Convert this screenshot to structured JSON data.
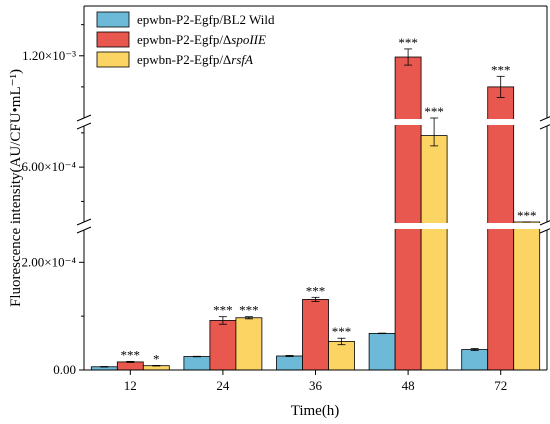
{
  "chart_data": {
    "type": "bar",
    "xlabel": "Time(h)",
    "ylabel": "Fluorescence intensity(AU/CFU•mL⁻¹)",
    "categories": [
      "12",
      "24",
      "36",
      "48",
      "72"
    ],
    "y_axis_breaks": [
      [
        0.00026,
        0.00052
      ],
      [
        0.00066,
        0.0011
      ]
    ],
    "yticks": [
      {
        "value": 0,
        "label": "0.00"
      },
      {
        "value": 0.0002,
        "label": "2.00×10⁻⁴"
      },
      {
        "value": 0.0006,
        "label": "6.00×10⁻⁴"
      },
      {
        "value": 0.0012,
        "label": "1.20×10⁻³"
      }
    ],
    "ylim": [
      0,
      0.00128
    ],
    "grid": false,
    "legend_position": "top-left",
    "series": [
      {
        "name": "epwbn-P2-Egfp/BL2 Wild",
        "color": "#6cbad8",
        "values": [
          6e-06,
          2.5e-05,
          2.6e-05,
          6.8e-05,
          3.8e-05
        ],
        "errors": [
          5e-07,
          5e-07,
          1e-06,
          5e-07,
          2e-06
        ],
        "significance": [
          "",
          "",
          "",
          "",
          ""
        ]
      },
      {
        "name": "epwbn-P2-Egfp/ΔspoIIE",
        "name_prefix": "epwbn-P2-Egfp/Δ",
        "name_italic": "spoIIE",
        "color": "#e8584e",
        "values": [
          1.5e-05,
          9.2e-05,
          0.000131,
          0.001198,
          0.00115
        ],
        "errors": [
          1e-06,
          7e-06,
          4e-06,
          1.3e-05,
          1.7e-05
        ],
        "significance": [
          "***",
          "***",
          "***",
          "***",
          "***"
        ]
      },
      {
        "name": "epwbn-P2-Egfp/ΔrsfA",
        "name_prefix": "epwbn-P2-Egfp/Δ",
        "name_italic": "rsfA",
        "color": "#fcd464",
        "values": [
          8e-06,
          9.7e-05,
          5.3e-05,
          0.000646,
          0.000276
        ],
        "errors": [
          5e-07,
          2e-06,
          6e-06,
          1.5e-05,
          6e-06
        ],
        "significance": [
          "*",
          "***",
          "***",
          "***",
          "***"
        ]
      }
    ]
  }
}
